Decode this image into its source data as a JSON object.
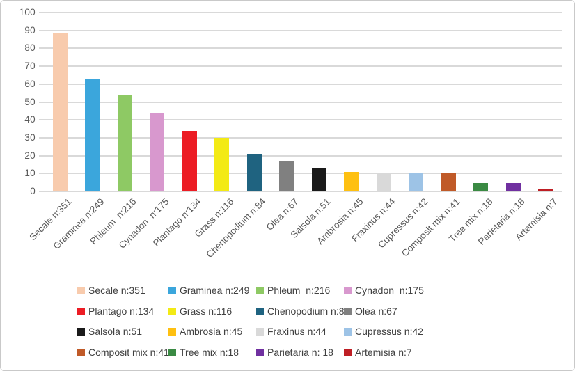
{
  "chart_data": {
    "type": "bar",
    "title": "",
    "xlabel": "",
    "ylabel": "",
    "ylim": [
      0,
      100
    ],
    "yticks": [
      0,
      10,
      20,
      30,
      40,
      50,
      60,
      70,
      80,
      90,
      100
    ],
    "grid": true,
    "legend_position": "bottom",
    "gridline_color": "#d9d9d9",
    "axis_text_color": "#595959",
    "legend_text_color": "#404040",
    "categories": [
      "Secale n:351",
      "Graminea n:249",
      "Phleum  n:216",
      "Cynadon  n:175",
      "Plantago n:134",
      "Grass n:116",
      "Chenopodium n:84",
      "Olea n:67",
      "Salsola n:51",
      "Ambrosia n:45",
      "Fraxinus n:44",
      "Cupressus n:42",
      "Composit mix n:41",
      "Tree mix n:18",
      "Parietaria n:18",
      "Artemisia n:7"
    ],
    "values": [
      88.5,
      63,
      54,
      44,
      34,
      30,
      21,
      17,
      13,
      11,
      10.5,
      10,
      10,
      4.5,
      4.5,
      1.5
    ],
    "colors": [
      "#F8CBAD",
      "#3BA6DC",
      "#8EC964",
      "#D898CE",
      "#EC1C24",
      "#F3EA15",
      "#1F6380",
      "#808080",
      "#1A1A1A",
      "#FEC011",
      "#D9D9D9",
      "#9DC3E6",
      "#C05A28",
      "#3A8A43",
      "#7030A0",
      "#BE1E24"
    ],
    "legend_labels": [
      "Secale n:351",
      "Graminea n:249",
      "Phleum  n:216",
      "Cynadon  n:175",
      "Plantago n:134",
      "Grass n:116",
      "Chenopodium n:84",
      "Olea n:67",
      "Salsola n:51",
      "Ambrosia n:45",
      "Fraxinus n:44",
      "Cupressus n:42",
      "Composit mix n:41",
      "Tree mix n:18",
      "Parietaria n: 18",
      "Artemisia n:7"
    ]
  }
}
